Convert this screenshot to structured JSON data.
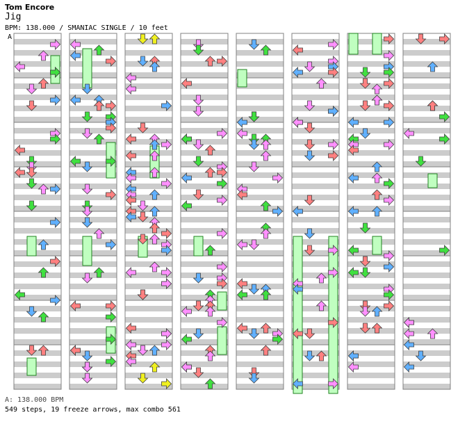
{
  "song": {
    "artist": "Tom Encore",
    "title": "Jig",
    "info": "BPM: 138.000 / SMANIAC SINGLE / 10 feet",
    "bpm_marker": "A",
    "bpm_legend": "A: 138.000 BPM",
    "stats": "549 steps, 19 freeze arrows, max combo 561"
  },
  "colors": {
    "red": "#ff8080",
    "blue": "#60b0ff",
    "green": "#40e040",
    "pink": "#ff90ff",
    "yellow": "#f0f020",
    "freeze": "#c0ffc0",
    "stripe": "#cccccc",
    "measureline": "#808080"
  },
  "chart": {
    "columns": 8,
    "measures_per_column": 8,
    "arrow_icons": [
      "left-arrow-icon",
      "down-arrow-icon",
      "up-arrow-icon",
      "right-arrow-icon"
    ]
  }
}
